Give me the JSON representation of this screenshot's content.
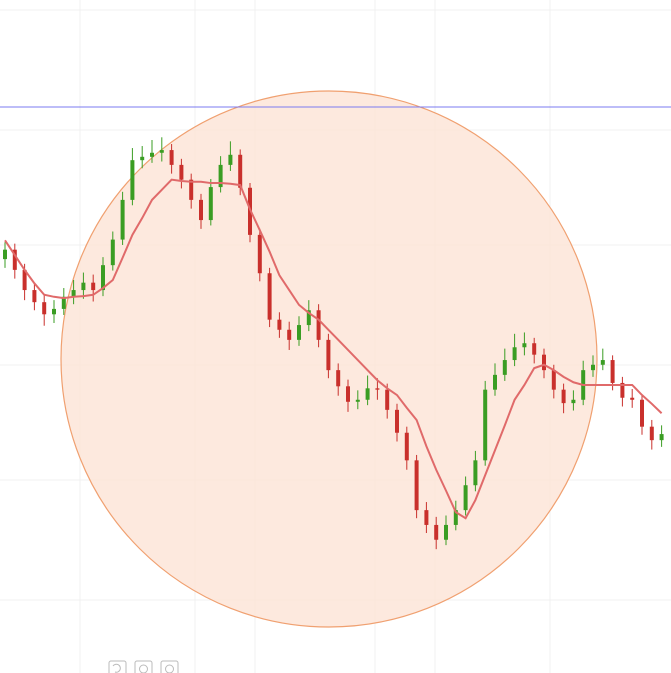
{
  "chart_data": {
    "type": "candlestick",
    "open": [
      61.5,
      62.9,
      59.9,
      56.9,
      55.1,
      53.3,
      54.1,
      55.9,
      56.9,
      58.0,
      56.9,
      60.6,
      64.4,
      70.3,
      76.2,
      76.7,
      77.3,
      77.7,
      75.5,
      73.3,
      70.3,
      67.3,
      72.2,
      75.5,
      77.0,
      72.1,
      65.1,
      59.4,
      52.5,
      51.0,
      49.5,
      51.7,
      53.9,
      49.5,
      45.0,
      42.6,
      40.3,
      40.6,
      42.3,
      42.1,
      39.1,
      35.7,
      31.6,
      24.2,
      22.0,
      19.8,
      22.0,
      24.2,
      27.9,
      31.6,
      42.1,
      44.3,
      46.5,
      48.4,
      49.0,
      47.3,
      45.0,
      42.1,
      40.1,
      40.6,
      45.0,
      45.8,
      46.5,
      43.1,
      40.9,
      40.6,
      36.6,
      34.6
    ],
    "high": [
      64.0,
      63.8,
      60.8,
      58.0,
      56.2,
      55.4,
      57.2,
      58.4,
      59.5,
      59.2,
      61.8,
      65.6,
      71.5,
      78.0,
      78.3,
      79.2,
      79.6,
      78.6,
      76.4,
      74.2,
      71.2,
      73.4,
      76.8,
      79.0,
      77.8,
      72.8,
      66.0,
      60.2,
      53.6,
      52.2,
      53.0,
      55.4,
      54.8,
      50.4,
      46.0,
      43.6,
      42.0,
      44.2,
      43.8,
      43.0,
      40.0,
      36.6,
      32.4,
      25.4,
      23.2,
      23.4,
      25.6,
      29.2,
      33.0,
      43.4,
      46.0,
      48.2,
      50.4,
      50.6,
      49.8,
      48.2,
      45.8,
      43.0,
      42.0,
      46.4,
      47.2,
      48.2,
      47.2,
      44.0,
      42.2,
      41.4,
      37.6,
      36.8
    ],
    "low": [
      60.2,
      58.6,
      55.4,
      53.9,
      51.6,
      52.0,
      53.2,
      54.8,
      55.6,
      55.2,
      56.0,
      59.8,
      63.6,
      69.5,
      75.0,
      75.8,
      76.0,
      74.2,
      72.0,
      69.0,
      66.0,
      66.5,
      71.4,
      74.6,
      71.0,
      64.0,
      58.2,
      51.4,
      49.8,
      48.0,
      48.6,
      50.8,
      48.4,
      43.8,
      41.2,
      38.8,
      39.2,
      39.8,
      40.6,
      37.8,
      34.4,
      30.2,
      23.0,
      20.8,
      18.4,
      19.0,
      21.2,
      23.4,
      27.0,
      30.8,
      41.2,
      43.4,
      45.6,
      47.2,
      46.0,
      43.8,
      40.8,
      38.6,
      39.0,
      39.8,
      44.0,
      45.0,
      42.0,
      39.6,
      39.4,
      35.4,
      33.2,
      33.6
    ],
    "close": [
      62.9,
      59.9,
      56.9,
      55.1,
      53.3,
      54.1,
      55.9,
      56.9,
      58.0,
      56.9,
      60.6,
      64.4,
      70.3,
      76.2,
      76.7,
      77.3,
      77.7,
      75.5,
      73.3,
      70.3,
      67.3,
      72.2,
      75.5,
      77.0,
      72.1,
      65.1,
      59.4,
      52.5,
      51.0,
      49.5,
      51.7,
      53.9,
      49.5,
      45.0,
      42.6,
      40.3,
      40.6,
      42.3,
      42.1,
      39.1,
      35.7,
      31.6,
      24.2,
      22.0,
      19.8,
      22.0,
      24.2,
      27.9,
      31.6,
      42.1,
      44.3,
      46.5,
      48.4,
      49.0,
      47.3,
      45.0,
      42.1,
      40.1,
      40.6,
      45.0,
      45.8,
      46.5,
      43.1,
      40.9,
      40.6,
      36.6,
      34.6,
      35.5
    ],
    "ma": [
      64.3,
      62.1,
      59.9,
      57.9,
      56.2,
      55.9,
      55.7,
      55.9,
      56.0,
      56.2,
      57.2,
      58.4,
      61.7,
      65.1,
      67.6,
      70.3,
      71.8,
      73.3,
      73.1,
      73.0,
      73.0,
      72.8,
      72.8,
      72.7,
      72.5,
      68.9,
      65.8,
      62.6,
      59.1,
      56.9,
      54.7,
      53.5,
      52.5,
      51.0,
      49.5,
      48.0,
      46.5,
      45.0,
      43.5,
      42.3,
      41.3,
      39.4,
      37.6,
      33.7,
      30.2,
      27.1,
      23.9,
      23.0,
      25.7,
      29.4,
      33.1,
      36.8,
      40.6,
      42.8,
      45.3,
      45.8,
      45.0,
      44.0,
      43.2,
      42.8,
      42.8,
      42.8,
      42.8,
      42.8,
      42.8,
      41.3,
      40.0,
      38.6
    ],
    "hline": 84.1,
    "ylim": [
      0,
      100
    ],
    "up_color": "#3a9d23",
    "down_color": "#c9302c",
    "ma_color": "#e06a6a",
    "hline_color": "#7b7bf0",
    "grid": true
  }
}
